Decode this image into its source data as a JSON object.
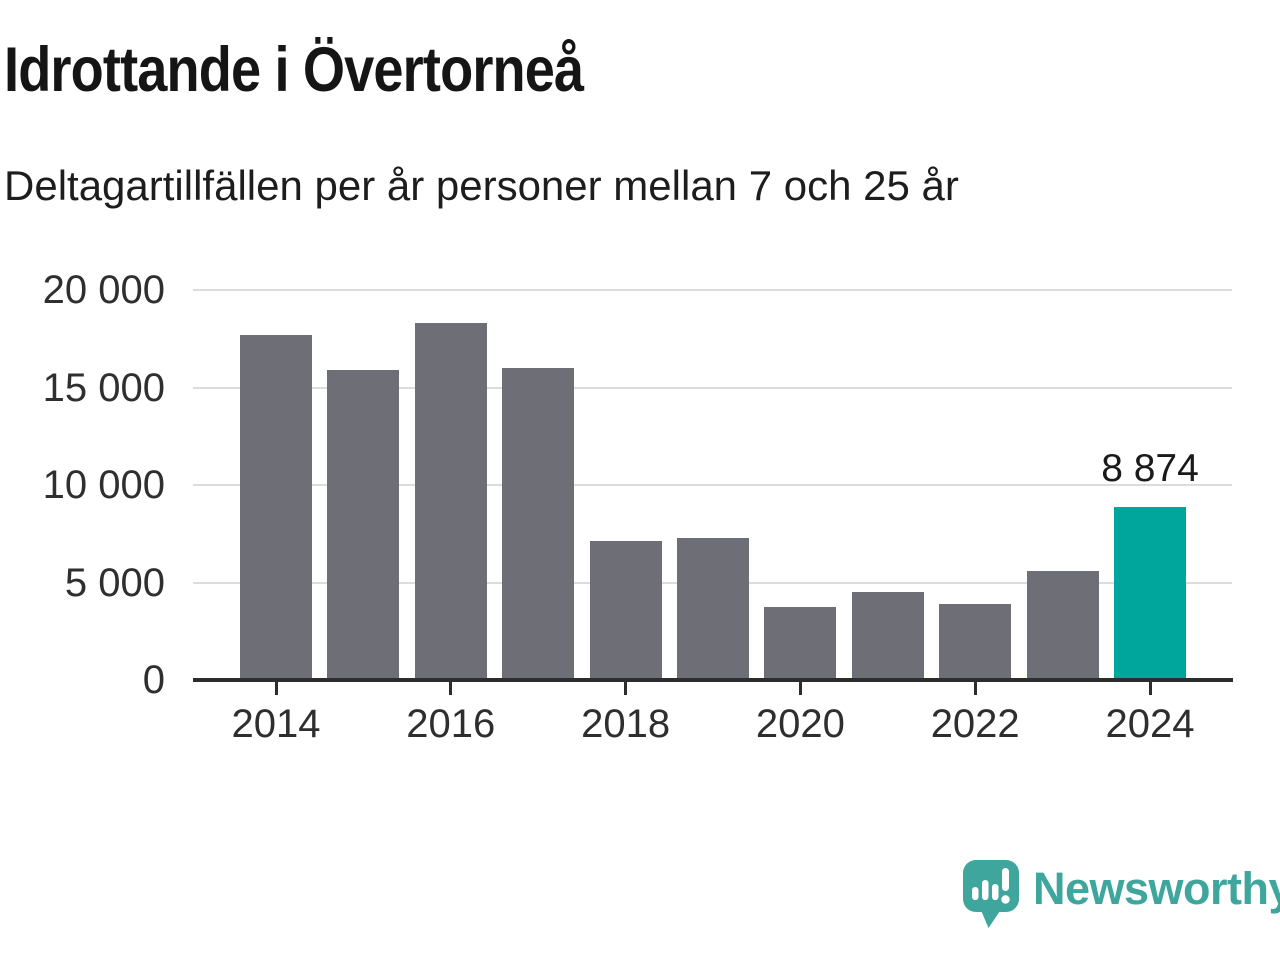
{
  "header": {
    "title": "Idrottande i Övertorneå",
    "subtitle": "Deltagartillfällen per år personer mellan 7 och 25 år"
  },
  "chart_data": {
    "type": "bar",
    "title": "Idrottande i Övertorneå",
    "subtitle": "Deltagartillfällen per år personer mellan 7 och 25 år",
    "categories": [
      "2014",
      "2015",
      "2016",
      "2017",
      "2018",
      "2019",
      "2020",
      "2021",
      "2022",
      "2023",
      "2024"
    ],
    "values": [
      17700,
      15900,
      18300,
      16000,
      7150,
      7270,
      3760,
      4530,
      3890,
      5600,
      8874
    ],
    "highlight_index": 10,
    "data_labels": [
      {
        "index": 10,
        "text": "8 874"
      }
    ],
    "ylim": [
      0,
      20000
    ],
    "y_ticks": [
      {
        "value": 0,
        "label": "0"
      },
      {
        "value": 5000,
        "label": "5 000"
      },
      {
        "value": 10000,
        "label": "10 000"
      },
      {
        "value": 15000,
        "label": "15 000"
      },
      {
        "value": 20000,
        "label": "20 000"
      }
    ],
    "x_ticks": [
      "2014",
      "2016",
      "2018",
      "2020",
      "2022",
      "2024"
    ],
    "grid": true,
    "legend": "none",
    "colors": {
      "bar": "#6e6e76",
      "highlight": "#00a59b",
      "grid": "#dcdcdc",
      "axis": "#2d2d2d"
    }
  },
  "footer": {
    "brand": "Newsworthy",
    "brand_color": "#3fa69d",
    "logo_icon": "newsworthy-speech-bubble-bar-chart-icon"
  }
}
